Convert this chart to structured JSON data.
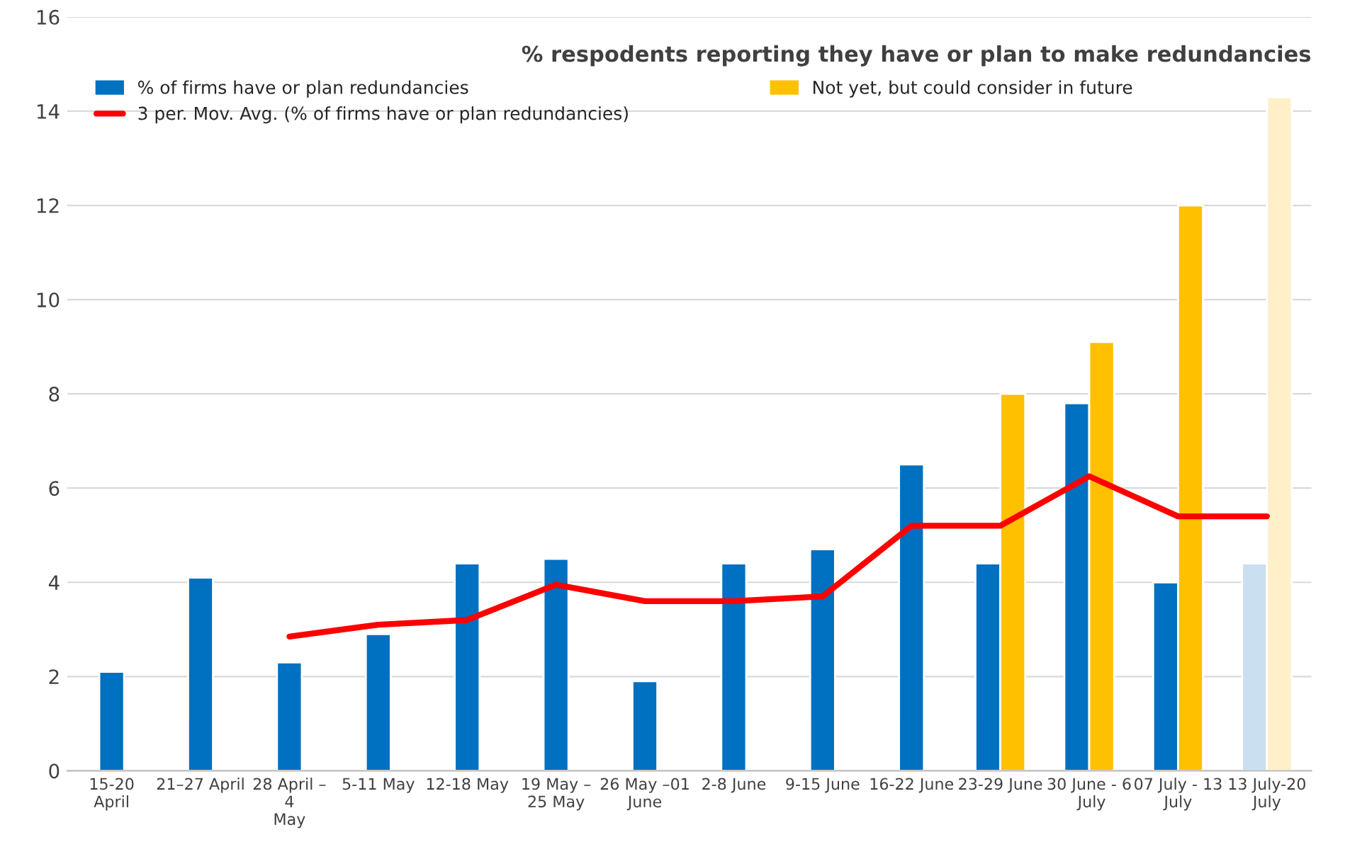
{
  "chart_data": {
    "type": "bar",
    "title": "% respodents reporting they have or plan to make redundancies",
    "categories": [
      "15-20 April",
      "21–27 April",
      "28 April – 4 May",
      "5-11 May",
      "12-18 May",
      "19 May – 25 May",
      "26 May –01 June",
      "2-8 June",
      "9-15 June",
      "16-22 June",
      "23-29 June",
      "30 June - 6 July",
      "07 July - 13 July",
      "13 July-20 July"
    ],
    "series": [
      {
        "name": "% of firms have or plan redundancies",
        "color": "#0070c0",
        "colors": [
          "#0070c0",
          "#0070c0",
          "#0070c0",
          "#0070c0",
          "#0070c0",
          "#0070c0",
          "#0070c0",
          "#0070c0",
          "#0070c0",
          "#0070c0",
          "#0070c0",
          "#0070c0",
          "#0070c0",
          "#cadff0"
        ],
        "values": [
          2.1,
          4.1,
          2.3,
          2.9,
          4.4,
          4.5,
          1.9,
          4.4,
          4.7,
          6.5,
          4.4,
          7.8,
          4.0,
          4.4
        ]
      },
      {
        "name": "Not yet, but could consider in future",
        "color": "#ffc000",
        "colors": [
          "#ffc000",
          "#ffc000",
          "#ffc000",
          "#ffc000",
          "#ffc000",
          "#ffc000",
          "#ffc000",
          "#ffc000",
          "#ffc000",
          "#ffc000",
          "#ffc000",
          "#ffc000",
          "#ffc000",
          "#fff0c9"
        ],
        "values": [
          null,
          null,
          null,
          null,
          null,
          null,
          null,
          null,
          null,
          null,
          8.0,
          9.1,
          12.0,
          14.3
        ]
      },
      {
        "name": "3 per. Mov. Avg. (% of firms have or plan redundancies)",
        "type": "line",
        "color": "#ff0000",
        "values": [
          null,
          null,
          2.85,
          3.1,
          3.2,
          3.95,
          3.6,
          3.6,
          3.7,
          5.2,
          5.2,
          6.25,
          5.4,
          5.4
        ]
      }
    ],
    "ylim": [
      0,
      16
    ],
    "yticks": [
      0,
      2,
      4,
      6,
      8,
      10,
      12,
      14,
      16
    ],
    "grid": "y",
    "legend": "top",
    "marker": "none",
    "line_style": "solid"
  }
}
